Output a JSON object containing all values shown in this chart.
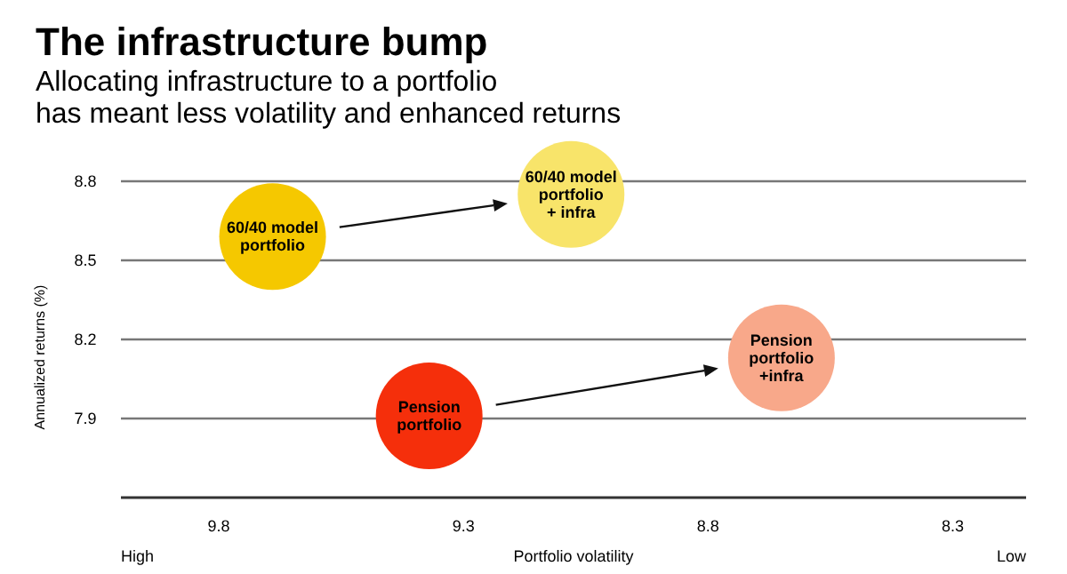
{
  "chart_data": {
    "type": "scatter",
    "title": "The infrastructure bump",
    "subtitle": "Allocating infrastructure to a portfolio\nhas meant less volatility and enhanced returns",
    "xlabel": "Portfolio volatility",
    "ylabel": "Annualized returns (%)",
    "series": [
      {
        "name": "60/40 model\nportfolio",
        "color": "#f5c800",
        "x": [
          9.69
        ],
        "values": [
          8.59
        ]
      },
      {
        "name": "60/40 model\nportfolio\n+ infra",
        "color": "#f8e46a",
        "x": [
          9.08
        ],
        "values": [
          8.75
        ]
      },
      {
        "name": "Pension\nportfolio",
        "color": "#f52f0b",
        "x": [
          9.37
        ],
        "values": [
          7.91
        ]
      },
      {
        "name": "Pension\nportfolio\n+infra",
        "color": "#f8a88a",
        "x": [
          8.65
        ],
        "values": [
          8.13
        ]
      }
    ],
    "xlim": [
      10.0,
      8.15
    ],
    "xticks": [
      9.8,
      9.3,
      8.8,
      8.3
    ],
    "ylim": [
      7.6,
      8.8
    ],
    "yticks": [
      7.9,
      8.2,
      8.5,
      8.8
    ],
    "annotations": [
      "High",
      "Low"
    ],
    "grid": "y",
    "legend": false,
    "marker": "circle"
  }
}
